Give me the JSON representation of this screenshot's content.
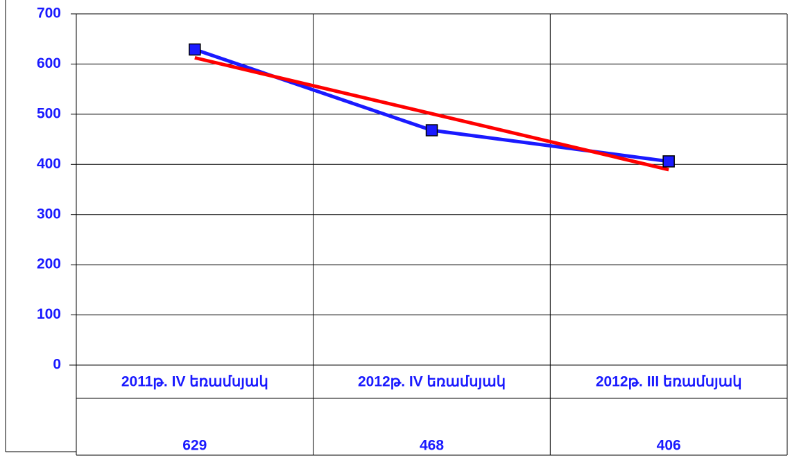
{
  "chart_data": {
    "type": "line",
    "categories": [
      "2011թ. IV եռամսյակ",
      "2012թ. IV եռամսյակ",
      "2012թ. III եռամսյակ"
    ],
    "values": [
      629,
      468,
      406
    ],
    "color": "#1a1aff",
    "trendline": {
      "type": "linear",
      "color": "#ff0000"
    },
    "ylim": [
      0,
      700
    ],
    "yticks": [
      0,
      100,
      200,
      300,
      400,
      500,
      600,
      700
    ],
    "grid": true,
    "data_table": true
  }
}
